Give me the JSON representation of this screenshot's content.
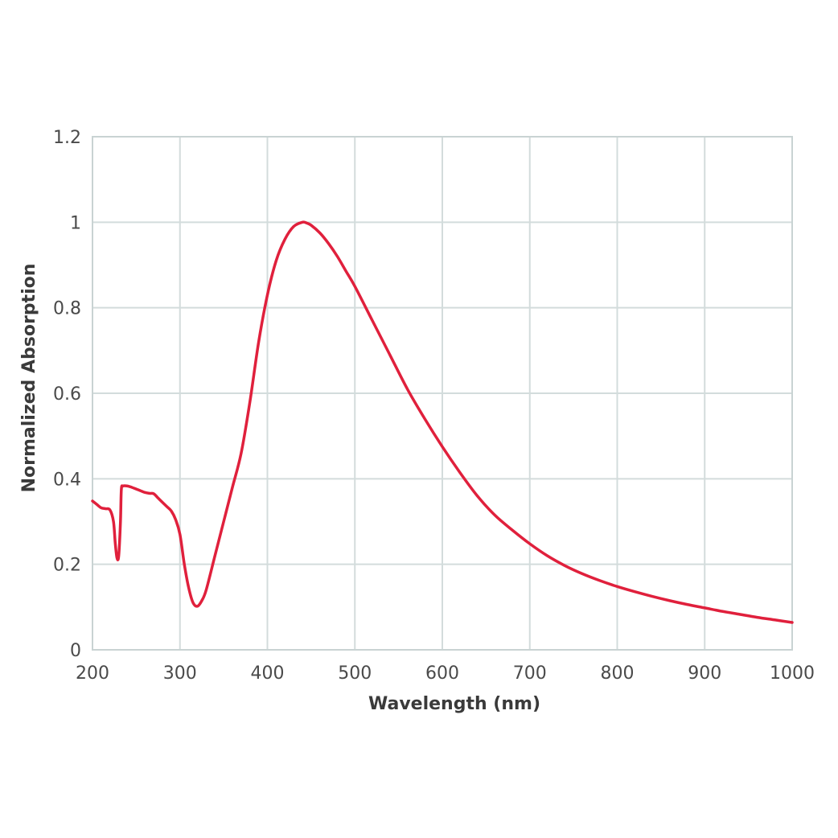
{
  "chart_data": {
    "type": "line",
    "title": "",
    "xlabel": "Wavelength (nm)",
    "ylabel": "Normalized Absorption",
    "xlim": [
      200,
      1000
    ],
    "ylim": [
      0,
      1.2
    ],
    "x_ticks": [
      200,
      300,
      400,
      500,
      600,
      700,
      800,
      900,
      1000
    ],
    "x_tick_labels": [
      "200",
      "300",
      "400",
      "500",
      "600",
      "700",
      "800",
      "900",
      "1000"
    ],
    "y_ticks": [
      0,
      0.2,
      0.4,
      0.6,
      0.8,
      1.0,
      1.2
    ],
    "y_tick_labels": [
      "0",
      "0.2",
      "0.4",
      "0.6",
      "0.8",
      "1",
      "1.2"
    ],
    "grid": true,
    "legend": "none",
    "series": [
      {
        "color": "#e0203c",
        "x": [
          200,
          205,
          210,
          215,
          220,
          224,
          226,
          228,
          230,
          232,
          233,
          235,
          240,
          245,
          250,
          255,
          260,
          265,
          270,
          275,
          280,
          285,
          290,
          295,
          300,
          305,
          310,
          315,
          320,
          325,
          330,
          340,
          350,
          360,
          370,
          380,
          390,
          400,
          410,
          420,
          430,
          440,
          445,
          450,
          460,
          470,
          480,
          490,
          500,
          520,
          540,
          560,
          580,
          600,
          620,
          640,
          660,
          680,
          700,
          720,
          740,
          760,
          780,
          800,
          820,
          840,
          860,
          880,
          900,
          920,
          940,
          960,
          980,
          1000
        ],
        "y": [
          0.348,
          0.34,
          0.332,
          0.33,
          0.327,
          0.3,
          0.25,
          0.215,
          0.22,
          0.3,
          0.375,
          0.383,
          0.383,
          0.38,
          0.376,
          0.372,
          0.368,
          0.366,
          0.365,
          0.355,
          0.345,
          0.335,
          0.325,
          0.305,
          0.27,
          0.2,
          0.145,
          0.11,
          0.102,
          0.115,
          0.14,
          0.22,
          0.3,
          0.38,
          0.46,
          0.58,
          0.72,
          0.83,
          0.91,
          0.96,
          0.99,
          1.0,
          0.998,
          0.993,
          0.975,
          0.95,
          0.92,
          0.885,
          0.85,
          0.77,
          0.69,
          0.61,
          0.54,
          0.475,
          0.415,
          0.36,
          0.315,
          0.28,
          0.248,
          0.22,
          0.197,
          0.178,
          0.162,
          0.148,
          0.136,
          0.125,
          0.115,
          0.106,
          0.098,
          0.09,
          0.083,
          0.076,
          0.07,
          0.064
        ]
      }
    ]
  }
}
